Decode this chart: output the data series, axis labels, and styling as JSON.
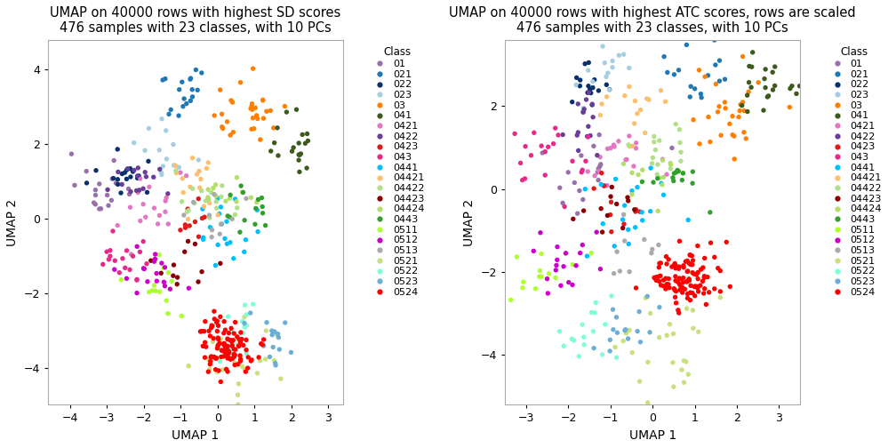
{
  "title1": "UMAP on 40000 rows with highest SD scores\n476 samples with 23 classes, with 10 PCs",
  "title2": "UMAP on 40000 rows with highest ATC scores, rows are scaled\n476 samples with 23 classes, with 10 PCs",
  "xlabel": "UMAP 1",
  "ylabel": "UMAP 2",
  "classes": [
    "01",
    "021",
    "022",
    "023",
    "03",
    "041",
    "0421",
    "0422",
    "0423",
    "043",
    "0441",
    "04421",
    "04422",
    "04423",
    "04424",
    "0443",
    "0511",
    "0512",
    "0513",
    "0521",
    "0522",
    "0523",
    "0524"
  ],
  "colors": [
    "#9970ab",
    "#1f78b4",
    "#08306b",
    "#a6cee3",
    "#ff7f00",
    "#3d5a1e",
    "#e377c2",
    "#6a3d9a",
    "#e31a1c",
    "#e7298a",
    "#00bfff",
    "#fdbf6f",
    "#b2df8a",
    "#8b0000",
    "#b3de69",
    "#33a02c",
    "#adff2f",
    "#cc00cc",
    "#aaaaaa",
    "#c8e17a",
    "#7fffd4",
    "#6baed6",
    "#ff0000"
  ],
  "n_classes": 23,
  "background": "#ffffff",
  "spine_color": "#aaaaaa",
  "point_size": 15
}
